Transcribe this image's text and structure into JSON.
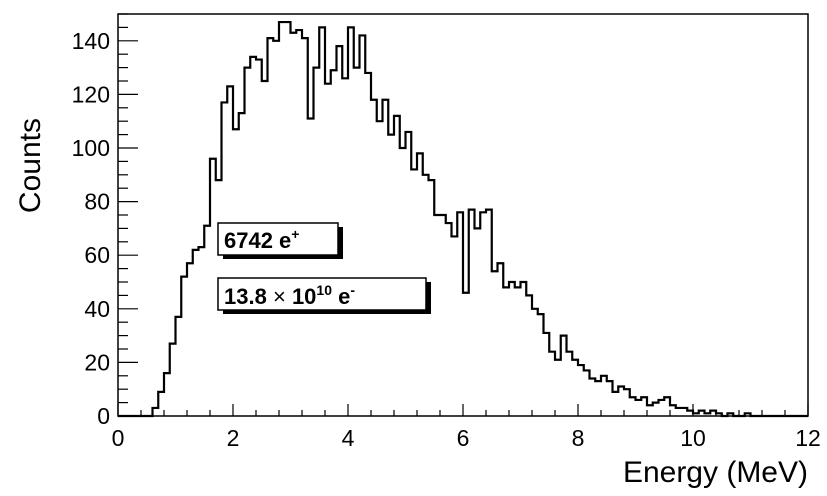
{
  "chart_data": {
    "type": "histogram",
    "xlabel": "Energy (MeV)",
    "ylabel": "Counts",
    "xlim": [
      0,
      12
    ],
    "ylim": [
      0,
      150
    ],
    "x_ticks": [
      0,
      2,
      4,
      6,
      8,
      10,
      12
    ],
    "y_ticks": [
      0,
      20,
      40,
      60,
      80,
      100,
      120,
      140
    ],
    "bin_width": 0.1,
    "bin_start": 0,
    "values": [
      0,
      0,
      0,
      0,
      0,
      0,
      3,
      9,
      16,
      27,
      37,
      52,
      57,
      62,
      63,
      71,
      96,
      88,
      117,
      123,
      107,
      113,
      130,
      134,
      133,
      125,
      141,
      140,
      147,
      147,
      143,
      144,
      141,
      111,
      130,
      145,
      124,
      129,
      138,
      126,
      145,
      130,
      142,
      128,
      118,
      110,
      118,
      105,
      112,
      100,
      106,
      92,
      98,
      90,
      88,
      75,
      75,
      72,
      67,
      76,
      46,
      77,
      70,
      76,
      77,
      54,
      57,
      48,
      50,
      48,
      50,
      45,
      40,
      38,
      31,
      24,
      21,
      30,
      24,
      21,
      19,
      17,
      14,
      13,
      15,
      13,
      9,
      11,
      10,
      7,
      6,
      7,
      4,
      5,
      6,
      7,
      4,
      3,
      3,
      2,
      1,
      2,
      1,
      2,
      1,
      0,
      1,
      0,
      0,
      1,
      0,
      0,
      0,
      0,
      0,
      0,
      0,
      0,
      0,
      0
    ],
    "annotations": [
      {
        "base": "6742 e",
        "sup": "+"
      },
      {
        "base": "13.8",
        "times": "×",
        "mid": "10",
        "sup1": "10",
        "tail": " e",
        "sup2": "-"
      }
    ]
  }
}
